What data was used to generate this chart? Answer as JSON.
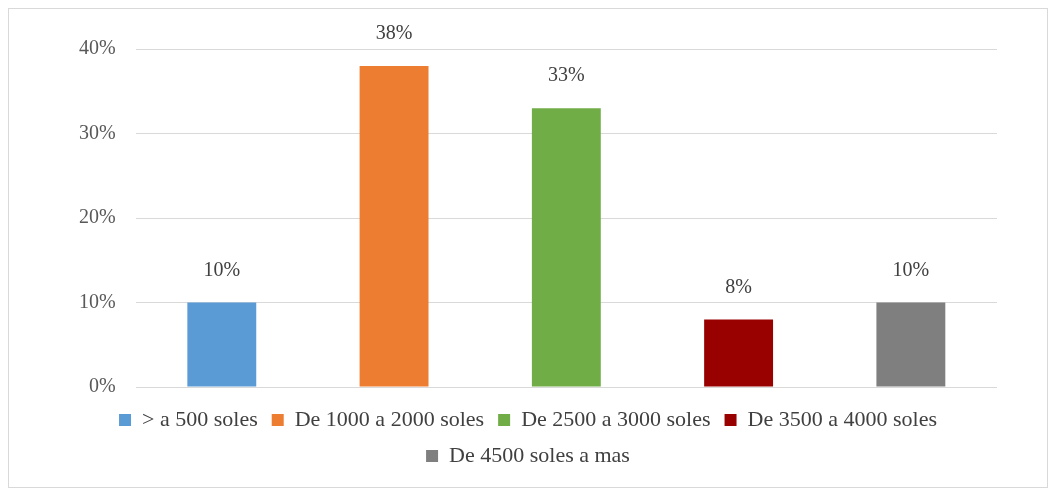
{
  "chart_data": {
    "type": "bar",
    "categories": [
      null
    ],
    "series": [
      {
        "name": "> a 500 soles",
        "color": "#5b9bd5",
        "values": [
          10
        ],
        "value_labels": [
          "10%"
        ]
      },
      {
        "name": "De 1000 a 2000 soles",
        "color": "#ed7d31",
        "values": [
          38
        ],
        "value_labels": [
          "38%"
        ]
      },
      {
        "name": "De 2500 a 3000 soles",
        "color": "#70ad47",
        "values": [
          33
        ],
        "value_labels": [
          "33%"
        ]
      },
      {
        "name": "De 3500 a 4000 soles",
        "color": "#990000",
        "values": [
          8
        ],
        "value_labels": [
          "8%"
        ]
      },
      {
        "name": "De 4500 soles a mas",
        "color": "#7f7f7f",
        "values": [
          10
        ],
        "value_labels": [
          "10%"
        ]
      }
    ],
    "ylim": [
      0,
      40
    ],
    "yticks": [
      {
        "value": 0,
        "label": "0%"
      },
      {
        "value": 10,
        "label": "10%"
      },
      {
        "value": 20,
        "label": "20%"
      },
      {
        "value": 30,
        "label": "30%"
      },
      {
        "value": 40,
        "label": "40%"
      }
    ],
    "grid": "y",
    "legend": "bottom",
    "tick_labels": "y"
  }
}
